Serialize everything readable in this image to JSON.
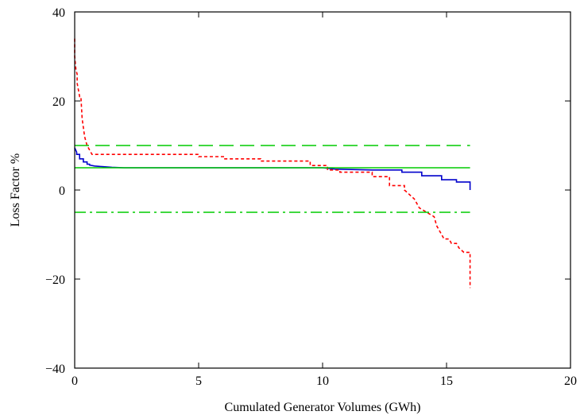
{
  "chart_data": {
    "type": "line",
    "title": "",
    "xlabel": "Cumulated Generator Volumes (GWh)",
    "ylabel": "Loss Factor %",
    "xlim": [
      0,
      20
    ],
    "ylim": [
      -40,
      40
    ],
    "xticks": [
      0,
      5,
      10,
      15,
      20
    ],
    "yticks": [
      -40,
      -20,
      0,
      20,
      40
    ],
    "grid": false,
    "legend": "none",
    "colors": {
      "axis": "#000000",
      "series_blue": "#0000cc",
      "series_red": "#ff0000",
      "reference_green": "#00cc00"
    },
    "series": [
      {
        "style": "solid",
        "color": "#0000cc",
        "x": [
          0,
          0.08,
          0.08,
          0.2,
          0.2,
          0.35,
          0.35,
          0.5,
          0.5,
          0.6,
          0.6,
          0.8,
          1.0,
          1.5,
          2,
          5,
          8,
          10,
          10.5,
          12,
          13.2,
          13.2,
          14.0,
          14.0,
          14.8,
          14.8,
          15.4,
          15.4,
          15.95,
          15.95
        ],
        "y": [
          9.5,
          8.5,
          8.0,
          8.0,
          7.0,
          7.0,
          6.3,
          6.3,
          5.8,
          5.8,
          5.6,
          5.4,
          5.3,
          5.1,
          5.0,
          5.0,
          5.0,
          5.0,
          4.7,
          4.5,
          4.5,
          4.0,
          4.0,
          3.2,
          3.2,
          2.3,
          2.3,
          1.8,
          1.8,
          0.0
        ]
      },
      {
        "style": "dotted",
        "color": "#ff0000",
        "x": [
          0,
          0,
          0.05,
          0.1,
          0.1,
          0.2,
          0.25,
          0.3,
          0.3,
          0.4,
          0.45,
          0.5,
          0.6,
          0.7,
          0.7,
          3,
          5,
          5,
          6,
          6,
          7.5,
          7.5,
          9.5,
          9.5,
          10.2,
          10.2,
          10.7,
          10.7,
          12,
          12,
          12.7,
          12.7,
          13.3,
          13.3,
          13.7,
          13.9,
          14.2,
          14.5,
          14.6,
          14.7,
          14.8,
          14.9,
          15.1,
          15.2,
          15.4,
          15.5,
          15.7,
          15.95,
          15.95
        ],
        "y": [
          34,
          30,
          27,
          26,
          24,
          21,
          21,
          16,
          16,
          12,
          11,
          10,
          9,
          8,
          8,
          8,
          8,
          7.5,
          7.5,
          7,
          7,
          6.5,
          6.5,
          5.5,
          5.5,
          4.5,
          4.5,
          4,
          4,
          3,
          3,
          1,
          1,
          0,
          -2,
          -4,
          -5,
          -6,
          -8,
          -9,
          -10,
          -11,
          -11,
          -12,
          -12,
          -13,
          -14,
          -14,
          -22
        ]
      },
      {
        "style": "dashed",
        "color": "#00cc00",
        "x": [
          0,
          15.95
        ],
        "y": [
          10,
          10
        ]
      },
      {
        "style": "solid",
        "color": "#00cc00",
        "x": [
          0,
          15.95
        ],
        "y": [
          5,
          5
        ]
      },
      {
        "style": "dashdot",
        "color": "#00cc00",
        "x": [
          0,
          15.95
        ],
        "y": [
          -5,
          -5
        ]
      }
    ]
  }
}
